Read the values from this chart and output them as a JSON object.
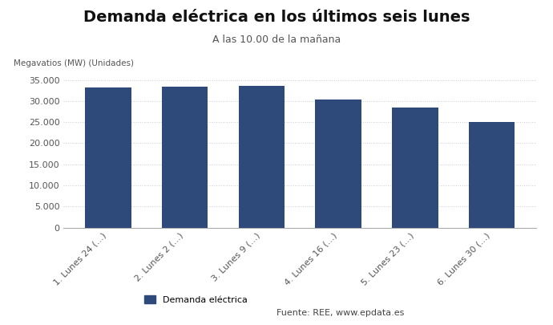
{
  "title": "Demanda eléctrica en los últimos seis lunes",
  "subtitle": "A las 10.00 de la mañana",
  "ylabel": "Megavatios (MW) (Unidades)",
  "categories": [
    "1. Lunes 24 (...)",
    "2. Lunes 2 (...)",
    "3. Lunes 9 (...)",
    "4. Lunes 16 (...)",
    "5. Lunes 23 (...)",
    "6. Lunes 30 (...)"
  ],
  "values": [
    33300,
    33400,
    33600,
    30400,
    28400,
    25100
  ],
  "bar_color": "#2d4a7a",
  "ylim": [
    0,
    37000
  ],
  "yticks": [
    0,
    5000,
    10000,
    15000,
    20000,
    25000,
    30000,
    35000
  ],
  "legend_label": "Demanda eléctrica",
  "source_text": "Fuente: REE, www.epdata.es",
  "background_color": "#ffffff",
  "grid_color": "#cccccc",
  "title_fontsize": 14,
  "subtitle_fontsize": 9,
  "ylabel_fontsize": 7.5,
  "tick_fontsize": 8,
  "legend_fontsize": 8
}
